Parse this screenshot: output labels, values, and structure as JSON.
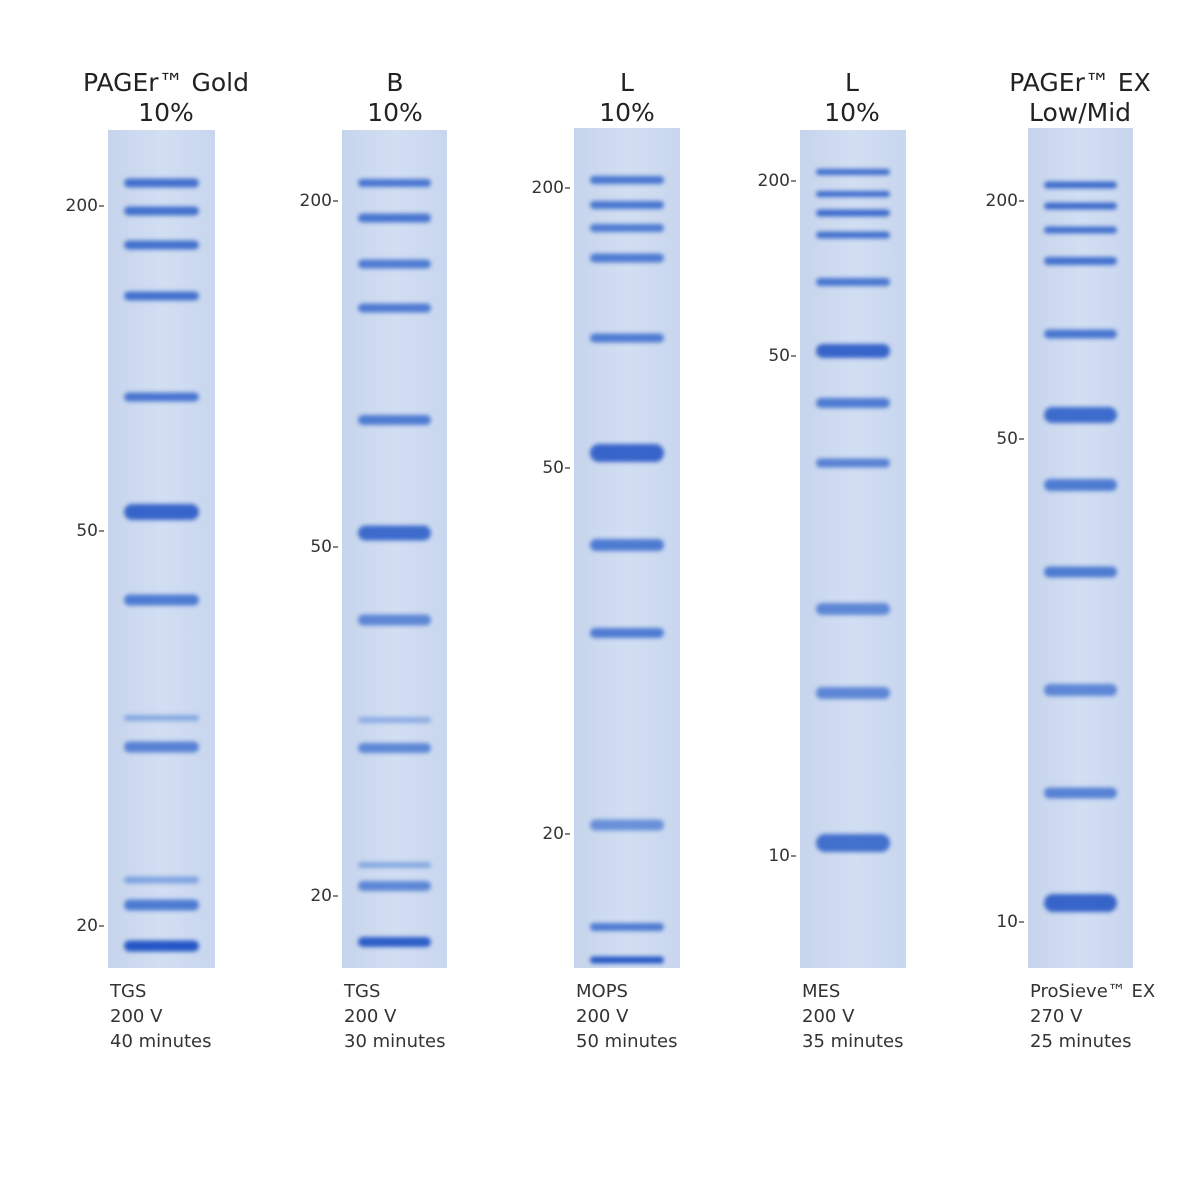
{
  "gels": [
    {
      "title": [
        "PAGEr™ Gold",
        "10%"
      ],
      "markers": [
        "200",
        "50",
        "20"
      ],
      "footer": [
        "TGS",
        "200 V",
        "40 minutes"
      ]
    },
    {
      "title": [
        "B",
        "10%"
      ],
      "markers": [
        "200",
        "50",
        "20"
      ],
      "footer": [
        "TGS",
        "200 V",
        "30 minutes"
      ]
    },
    {
      "title": [
        "L",
        "10%"
      ],
      "markers": [
        "200",
        "50",
        "20"
      ],
      "footer": [
        "MOPS",
        "200 V",
        "50 minutes"
      ]
    },
    {
      "title": [
        "L",
        "10%"
      ],
      "markers": [
        "200",
        "50",
        "10"
      ],
      "footer": [
        "MES",
        "200 V",
        "35 minutes"
      ]
    },
    {
      "title": [
        "PAGEr™ EX",
        "Low/Mid"
      ],
      "markers": [
        "200",
        "50",
        "10"
      ],
      "footer": [
        "ProSieve™ EX",
        "270 V",
        "25 minutes"
      ]
    }
  ]
}
